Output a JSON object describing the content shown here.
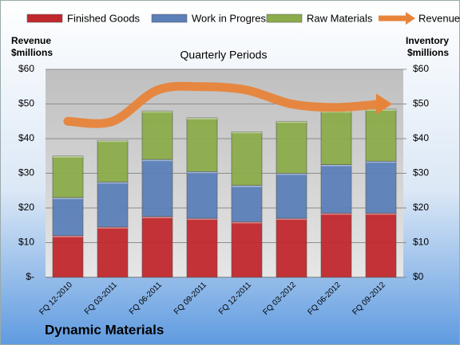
{
  "chart_data": {
    "type": "stacked_bar_line",
    "title": "Quarterly Periods",
    "ylabel": [
      "Revenue",
      "$millions"
    ],
    "y2label": [
      "Inventory",
      "$millions"
    ],
    "footer": "Dynamic Materials",
    "categories": [
      "FQ 12-2010",
      "FQ 03-2011",
      "FQ 06-2011",
      "FQ 09-2011",
      "FQ 12-2011",
      "FQ 03-2012",
      "FQ 06-2012",
      "FQ 09-2012"
    ],
    "series": [
      {
        "name": "Finished Goods",
        "color": "#c0282d",
        "kind": "bar",
        "axis": "y2",
        "values": [
          12,
          14.5,
          17.5,
          17,
          16,
          17,
          18.5,
          18.5
        ]
      },
      {
        "name": "Work in Progress",
        "color": "#5b7fb8",
        "kind": "bar",
        "axis": "y2",
        "values": [
          11,
          13,
          16.5,
          13.5,
          10.5,
          13,
          14,
          15
        ]
      },
      {
        "name": "Raw Materials",
        "color": "#8aac4a",
        "kind": "bar",
        "axis": "y2",
        "values": [
          12,
          12,
          14,
          15.5,
          15.5,
          15,
          15.5,
          15
        ]
      },
      {
        "name": "Revenue",
        "color": "#e8843a",
        "kind": "line",
        "axis": "y",
        "values": [
          45,
          45,
          54,
          55,
          54,
          50,
          49,
          50
        ]
      }
    ],
    "ylim": [
      0,
      60
    ],
    "yticks": [
      {
        "value": 0,
        "label": "$-"
      },
      {
        "value": 10,
        "label": "$10"
      },
      {
        "value": 20,
        "label": "$20"
      },
      {
        "value": 30,
        "label": "$30"
      },
      {
        "value": 40,
        "label": "$40"
      },
      {
        "value": 50,
        "label": "$50"
      },
      {
        "value": 60,
        "label": "$60"
      }
    ],
    "y2lim": [
      0,
      60
    ],
    "y2ticks": [
      {
        "value": 0,
        "label": "$0"
      },
      {
        "value": 10,
        "label": "$10"
      },
      {
        "value": 20,
        "label": "$20"
      },
      {
        "value": 30,
        "label": "$30"
      },
      {
        "value": 40,
        "label": "$40"
      },
      {
        "value": 50,
        "label": "$50"
      },
      {
        "value": 60,
        "label": "$60"
      }
    ],
    "grid": true
  }
}
